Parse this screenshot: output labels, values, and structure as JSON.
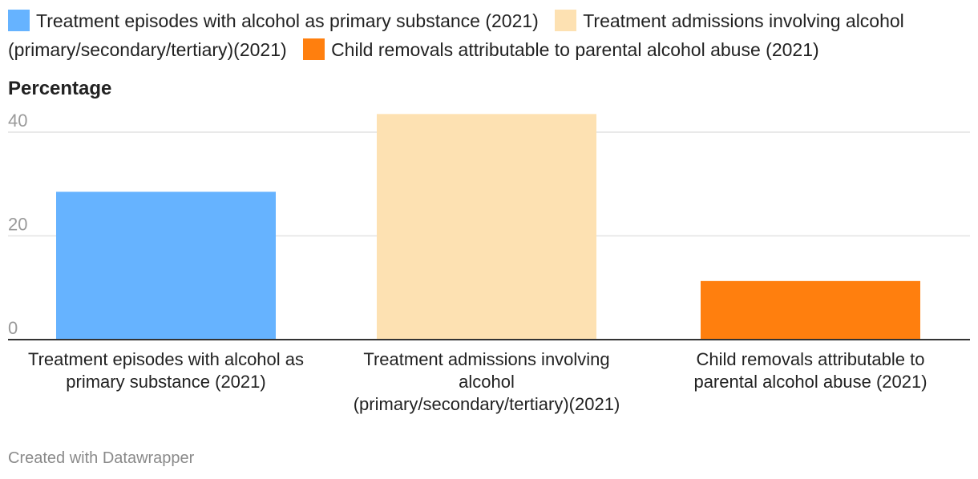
{
  "chart_data": {
    "type": "bar",
    "ylabel": "Percentage",
    "ylim": [
      0,
      43
    ],
    "yticks": [
      0,
      20,
      40
    ],
    "categories": [
      [
        "Treatment episodes with alcohol as",
        "primary substance (2021)"
      ],
      [
        "Treatment admissions involving",
        "alcohol",
        "(primary/secondary/tertiary)(2021)"
      ],
      [
        "Child removals attributable to",
        "parental alcohol abuse (2021)"
      ]
    ],
    "values": [
      28.5,
      43.5,
      11.3
    ],
    "colors": [
      "#66b3ff",
      "#fde1b2",
      "#ff7f0e"
    ],
    "legend": [
      {
        "label": "Treatment episodes with alcohol as primary substance (2021)",
        "color": "#66b3ff"
      },
      {
        "label": "Treatment admissions involving alcohol (primary/secondary/tertiary)(2021)",
        "color": "#fde1b2"
      },
      {
        "label": "Child removals attributable to parental alcohol abuse (2021)",
        "color": "#ff7f0e"
      }
    ]
  },
  "footer": {
    "credit": "Created with Datawrapper"
  }
}
